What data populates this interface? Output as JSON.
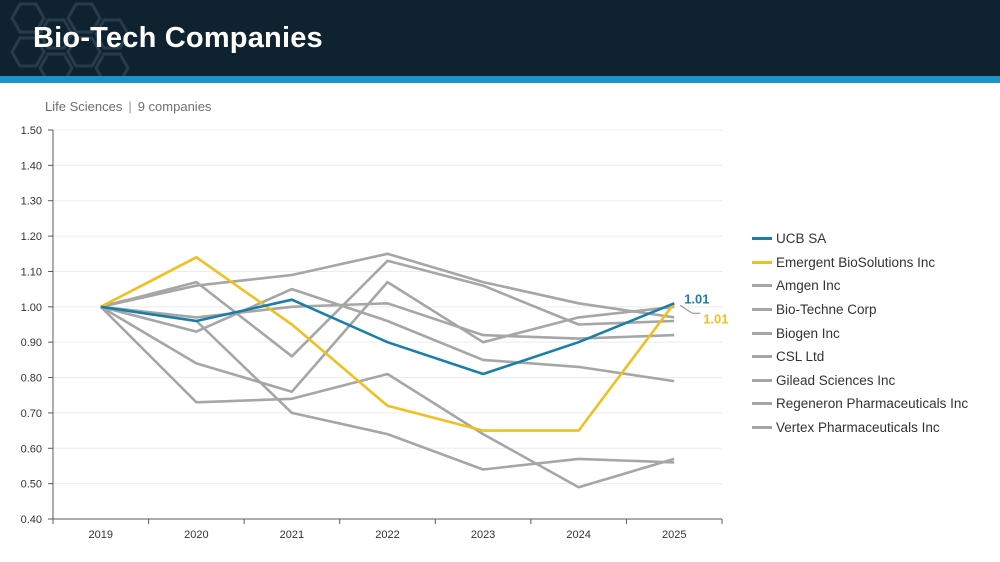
{
  "header": {
    "title": "Bio-Tech Companies",
    "background": "#0f2230",
    "stripe_color": "#1a93c9"
  },
  "subtitle": {
    "category": "Life Sciences",
    "separator": "|",
    "count": "9 companies"
  },
  "chart_data": {
    "type": "line",
    "title": "",
    "xlabel": "",
    "ylabel": "",
    "x": [
      "2019",
      "2020",
      "2021",
      "2022",
      "2023",
      "2024",
      "2025"
    ],
    "ylim": [
      0.4,
      1.5
    ],
    "yticks": [
      "0.40",
      "0.50",
      "0.60",
      "0.70",
      "0.80",
      "0.90",
      "1.00",
      "1.10",
      "1.20",
      "1.30",
      "1.40",
      "1.50"
    ],
    "grid": "horizontal",
    "legend_position": "right",
    "series": [
      {
        "name": "Amgen Inc",
        "color": "#a6a6a6",
        "values": [
          1.0,
          1.06,
          1.09,
          1.15,
          1.07,
          1.01,
          0.97
        ]
      },
      {
        "name": "Bio-Techne Corp",
        "color": "#a6a6a6",
        "values": [
          1.0,
          1.07,
          0.86,
          1.13,
          1.06,
          0.95,
          0.96
        ]
      },
      {
        "name": "Biogen Inc",
        "color": "#a6a6a6",
        "values": [
          1.0,
          0.97,
          1.0,
          1.01,
          0.92,
          0.91,
          0.92
        ]
      },
      {
        "name": "CSL Ltd",
        "color": "#a6a6a6",
        "values": [
          1.0,
          0.93,
          1.05,
          0.96,
          0.85,
          0.83,
          0.79
        ]
      },
      {
        "name": "Gilead Sciences Inc",
        "color": "#a6a6a6",
        "values": [
          1.0,
          0.84,
          0.76,
          1.07,
          0.9,
          0.97,
          1.0
        ]
      },
      {
        "name": "Regeneron Pharmaceuticals Inc",
        "color": "#a6a6a6",
        "values": [
          1.0,
          0.73,
          0.74,
          0.81,
          0.64,
          0.49,
          0.57
        ]
      },
      {
        "name": "Vertex Pharmaceuticals Inc",
        "color": "#a6a6a6",
        "values": [
          1.0,
          0.96,
          0.7,
          0.64,
          0.54,
          0.57,
          0.56
        ]
      },
      {
        "name": "Emergent BioSolutions Inc",
        "color": "#f0c020",
        "values": [
          1.0,
          1.14,
          0.95,
          0.72,
          0.65,
          0.65,
          1.01
        ]
      },
      {
        "name": "UCB SA",
        "color": "#1a7fa8",
        "values": [
          1.0,
          0.96,
          1.02,
          0.9,
          0.81,
          0.9,
          1.01
        ]
      }
    ],
    "legend_order": [
      "UCB SA",
      "Emergent BioSolutions Inc",
      "Amgen Inc",
      "Bio-Techne Corp",
      "Biogen Inc",
      "CSL Ltd",
      "Gilead Sciences Inc",
      "Regeneron Pharmaceuticals Inc",
      "Vertex Pharmaceuticals Inc"
    ],
    "annotations": [
      {
        "series": "UCB SA",
        "text": "1.01",
        "color": "#1a7fa8"
      },
      {
        "series": "Emergent BioSolutions Inc",
        "text": "1.01",
        "color": "#f0c020"
      }
    ]
  }
}
